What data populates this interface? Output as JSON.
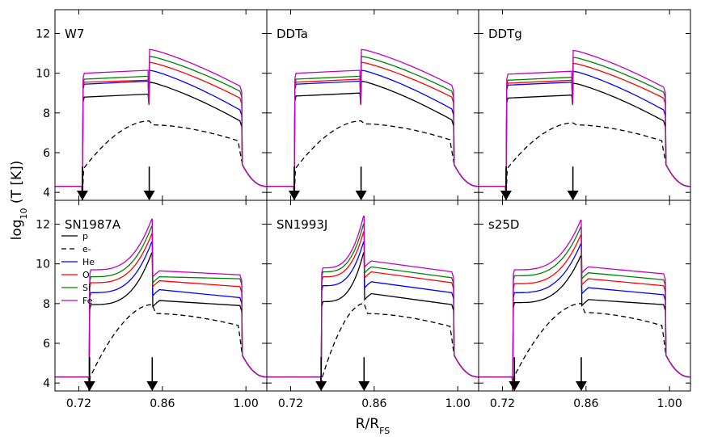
{
  "chart_data": {
    "type": "line",
    "xlabel_main": "R/R",
    "xlabel_sub": "FS",
    "ylabel_main": "log",
    "ylabel_sub": "10",
    "ylabel_rest": " (T [K])",
    "xlim": [
      0.68,
      1.035
    ],
    "ylim": [
      3.6,
      13.2
    ],
    "x_ticks": [
      0.72,
      0.86,
      1.0
    ],
    "x_tick_labels": [
      "0.72",
      "0.86",
      "1.00"
    ],
    "y_ticks": [
      4,
      6,
      8,
      10,
      12
    ],
    "y_tick_labels": [
      "4",
      "6",
      "8",
      "10",
      "12"
    ],
    "series_styles": [
      {
        "name": "p",
        "color": "#000000",
        "dashed": false
      },
      {
        "name": "e-",
        "color": "#000000",
        "dashed": true
      },
      {
        "name": "He",
        "color": "#0000ff",
        "dashed": false
      },
      {
        "name": "O",
        "color": "#ff0000",
        "dashed": false
      },
      {
        "name": "Si",
        "color": "#008000",
        "dashed": false
      },
      {
        "name": "Fe",
        "color": "#bf00bf",
        "dashed": false
      }
    ],
    "legend_panel": 3,
    "panels": [
      {
        "label": "W7",
        "kind": "Ia",
        "r_rs": 0.726,
        "r_cd": 0.838,
        "r_fs": 0.993,
        "arrows": [
          0.726,
          0.838
        ],
        "ions": [
          {
            "name": "p",
            "rs": 8.8,
            "cd_left": 8.95,
            "peak": 9.55,
            "end": 7.6
          },
          {
            "name": "He",
            "rs": 9.45,
            "cd_left": 9.6,
            "peak": 10.15,
            "end": 8.15
          },
          {
            "name": "O",
            "rs": 9.55,
            "cd_left": 9.65,
            "peak": 10.55,
            "end": 8.75
          },
          {
            "name": "Si",
            "rs": 9.7,
            "cd_left": 9.85,
            "peak": 10.85,
            "end": 9.1
          },
          {
            "name": "Fe",
            "rs": 10.0,
            "cd_left": 10.15,
            "peak": 11.2,
            "end": 9.35
          }
        ],
        "electron": {
          "start": 5.2,
          "mid": 6.5,
          "cd_peak": 7.6,
          "right": 7.4,
          "end": 6.6
        }
      },
      {
        "label": "DDTa",
        "kind": "Ia",
        "r_rs": 0.726,
        "r_cd": 0.838,
        "r_fs": 0.993,
        "arrows": [
          0.726,
          0.838
        ],
        "ions": [
          {
            "name": "p",
            "rs": 8.85,
            "cd_left": 9.0,
            "peak": 9.6,
            "end": 7.65
          },
          {
            "name": "He",
            "rs": 9.45,
            "cd_left": 9.6,
            "peak": 10.15,
            "end": 8.2
          },
          {
            "name": "O",
            "rs": 9.55,
            "cd_left": 9.7,
            "peak": 10.55,
            "end": 8.8
          },
          {
            "name": "Si",
            "rs": 9.7,
            "cd_left": 9.85,
            "peak": 10.85,
            "end": 9.1
          },
          {
            "name": "Fe",
            "rs": 10.0,
            "cd_left": 10.15,
            "peak": 11.2,
            "end": 9.4
          }
        ],
        "electron": {
          "start": 5.2,
          "mid": 6.5,
          "cd_peak": 7.6,
          "right": 7.45,
          "end": 6.65
        }
      },
      {
        "label": "DDTg",
        "kind": "Ia",
        "r_rs": 0.726,
        "r_cd": 0.838,
        "r_fs": 0.993,
        "arrows": [
          0.726,
          0.838
        ],
        "ions": [
          {
            "name": "p",
            "rs": 8.75,
            "cd_left": 8.9,
            "peak": 9.5,
            "end": 7.6
          },
          {
            "name": "He",
            "rs": 9.4,
            "cd_left": 9.55,
            "peak": 10.1,
            "end": 8.15
          },
          {
            "name": "O",
            "rs": 9.5,
            "cd_left": 9.65,
            "peak": 10.5,
            "end": 8.75
          },
          {
            "name": "Si",
            "rs": 9.65,
            "cd_left": 9.8,
            "peak": 10.8,
            "end": 9.05
          },
          {
            "name": "Fe",
            "rs": 9.95,
            "cd_left": 10.1,
            "peak": 11.15,
            "end": 9.3
          }
        ],
        "electron": {
          "start": 5.2,
          "mid": 6.5,
          "cd_peak": 7.5,
          "right": 7.4,
          "end": 6.6
        }
      },
      {
        "label": "SN1987A",
        "kind": "CC",
        "r_rs": 0.737,
        "r_cd": 0.843,
        "r_fs": 0.993,
        "arrows": [
          0.738,
          0.843
        ],
        "ions": [
          {
            "name": "p",
            "rs": 7.95,
            "cd_left": 10.55,
            "peak": 8.15,
            "end": 7.9
          },
          {
            "name": "He",
            "rs": 8.55,
            "cd_left": 11.1,
            "peak": 8.7,
            "end": 8.3
          },
          {
            "name": "O",
            "rs": 9.05,
            "cd_left": 11.5,
            "peak": 9.15,
            "end": 8.85
          },
          {
            "name": "Si",
            "rs": 9.35,
            "cd_left": 11.9,
            "peak": 9.35,
            "end": 9.25
          },
          {
            "name": "Fe",
            "rs": 9.7,
            "cd_left": 12.25,
            "peak": 9.65,
            "end": 9.45
          }
        ],
        "electron": {
          "start": 4.3,
          "mid": 6.3,
          "cd_peak": 7.95,
          "right": 7.5,
          "end": 6.9
        }
      },
      {
        "label": "SN1993J",
        "kind": "CC",
        "r_rs": 0.771,
        "r_cd": 0.843,
        "r_fs": 0.993,
        "arrows": [
          0.771,
          0.843
        ],
        "ions": [
          {
            "name": "p",
            "rs": 8.1,
            "cd_left": 10.55,
            "peak": 8.5,
            "end": 7.95
          },
          {
            "name": "He",
            "rs": 8.9,
            "cd_left": 11.1,
            "peak": 9.1,
            "end": 8.55
          },
          {
            "name": "O",
            "rs": 9.35,
            "cd_left": 11.6,
            "peak": 9.6,
            "end": 9.05
          },
          {
            "name": "Si",
            "rs": 9.6,
            "cd_left": 12.0,
            "peak": 9.85,
            "end": 9.3
          },
          {
            "name": "Fe",
            "rs": 9.8,
            "cd_left": 12.4,
            "peak": 10.15,
            "end": 9.6
          }
        ],
        "electron": {
          "start": 4.3,
          "mid": 6.5,
          "cd_peak": 8.0,
          "right": 7.5,
          "end": 6.85
        }
      },
      {
        "label": "s25D",
        "kind": "CC",
        "r_rs": 0.737,
        "r_cd": 0.852,
        "r_fs": 0.993,
        "arrows": [
          0.74,
          0.852
        ],
        "ions": [
          {
            "name": "p",
            "rs": 8.05,
            "cd_left": 10.4,
            "peak": 8.2,
            "end": 7.95
          },
          {
            "name": "He",
            "rs": 8.55,
            "cd_left": 11.0,
            "peak": 8.8,
            "end": 8.45
          },
          {
            "name": "O",
            "rs": 9.0,
            "cd_left": 11.45,
            "peak": 9.25,
            "end": 8.9
          },
          {
            "name": "Si",
            "rs": 9.4,
            "cd_left": 11.85,
            "peak": 9.55,
            "end": 9.2
          },
          {
            "name": "Fe",
            "rs": 9.7,
            "cd_left": 12.2,
            "peak": 9.85,
            "end": 9.5
          }
        ],
        "electron": {
          "start": 4.3,
          "mid": 6.4,
          "cd_peak": 8.0,
          "right": 7.55,
          "end": 6.9
        }
      }
    ]
  }
}
